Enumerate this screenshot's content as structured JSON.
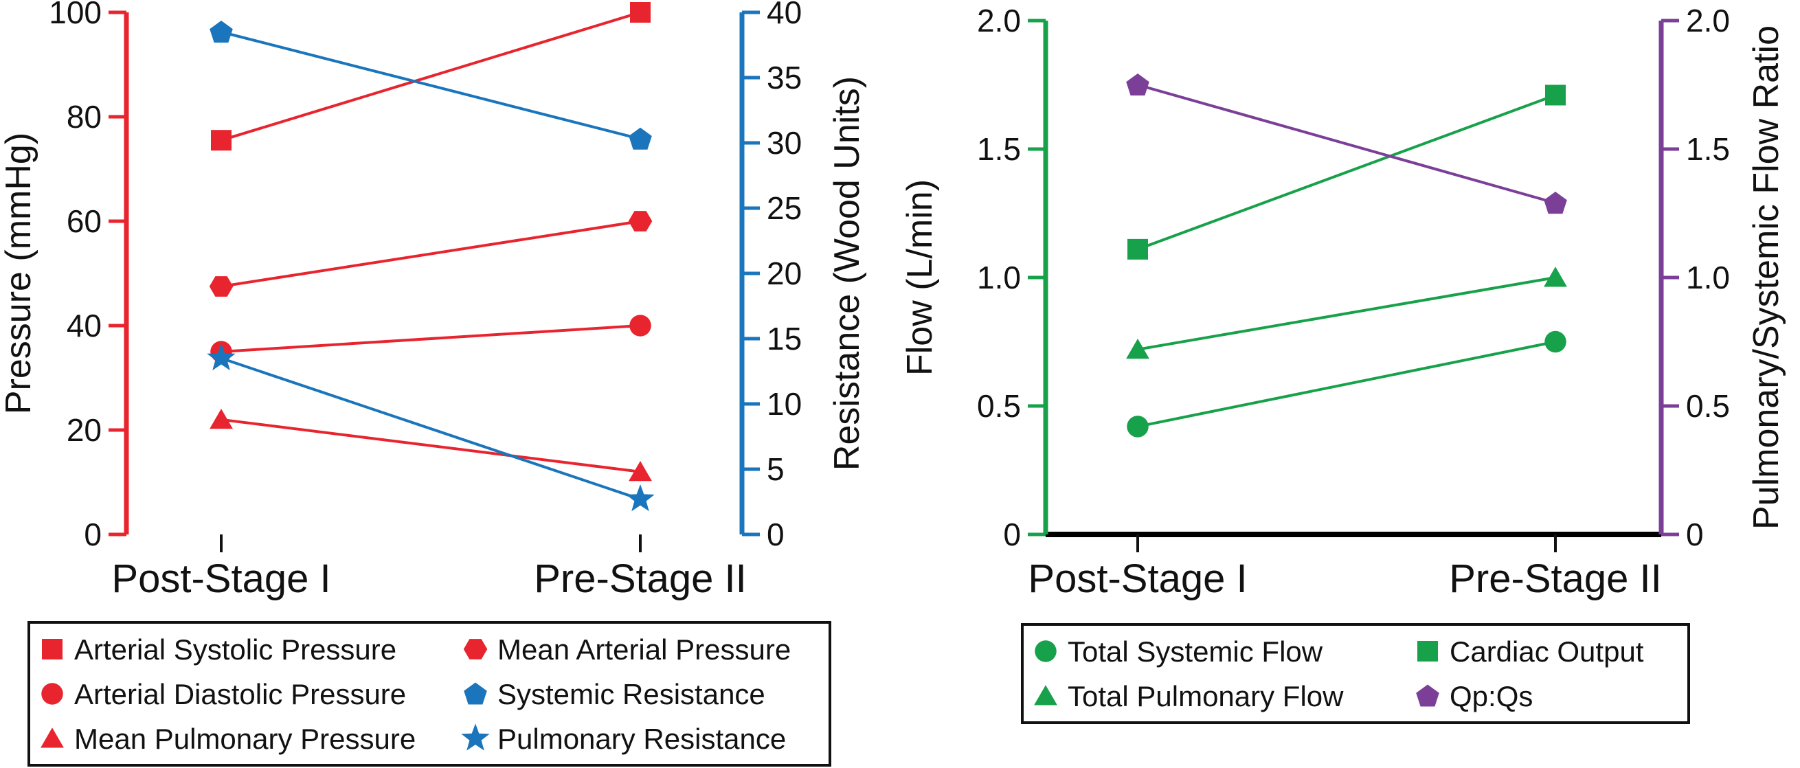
{
  "chart_data": [
    {
      "type": "line",
      "name": "pressure-resistance",
      "categories": [
        "Post-Stage I",
        "Pre-Stage II"
      ],
      "left_axis": {
        "label": "Pressure (mmHg)",
        "ylim": [
          0,
          100
        ],
        "ticks": [
          0,
          20,
          40,
          60,
          80,
          100
        ],
        "color": "#e8242e"
      },
      "right_axis": {
        "label": "Resistance (Wood Units)",
        "ylim": [
          0,
          40
        ],
        "ticks": [
          0,
          5,
          10,
          15,
          20,
          25,
          30,
          35,
          40
        ],
        "color": "#1a75bc"
      },
      "series": [
        {
          "name": "Arterial Systolic Pressure",
          "axis": "left",
          "marker": "square",
          "color": "#e8242e",
          "values": [
            75.5,
            100
          ]
        },
        {
          "name": "Arterial Diastolic Pressure",
          "axis": "left",
          "marker": "circle",
          "color": "#e8242e",
          "values": [
            35,
            40
          ]
        },
        {
          "name": "Mean Pulmonary Pressure",
          "axis": "left",
          "marker": "triangle",
          "color": "#e8242e",
          "values": [
            22,
            12
          ]
        },
        {
          "name": "Mean Arterial Pressure",
          "axis": "left",
          "marker": "hexagon",
          "color": "#e8242e",
          "values": [
            47.5,
            60
          ]
        },
        {
          "name": "Systemic Resistance",
          "axis": "right",
          "marker": "pentagon",
          "color": "#1a75bc",
          "values": [
            38.5,
            30.3
          ]
        },
        {
          "name": "Pulmonary Resistance",
          "axis": "right",
          "marker": "star",
          "color": "#1a75bc",
          "values": [
            13.5,
            2.7
          ]
        }
      ],
      "legend_order": [
        "Arterial Systolic Pressure",
        "Mean Arterial Pressure",
        "Arterial Diastolic Pressure",
        "Systemic Resistance",
        "Mean Pulmonary Pressure",
        "Pulmonary Resistance"
      ],
      "legend_position": "bottom"
    },
    {
      "type": "line",
      "name": "flow",
      "categories": [
        "Post-Stage I",
        "Pre-Stage II"
      ],
      "left_axis": {
        "label": "Flow (L/min)",
        "ylim": [
          0,
          2.0
        ],
        "ticks": [
          0,
          0.5,
          1.0,
          1.5,
          2.0
        ],
        "tick_labels": [
          "0",
          "0.5",
          "1.0",
          "1.5",
          "2.0"
        ],
        "color": "#17a14a"
      },
      "right_axis": {
        "label": "Pulmonary/Systemic Flow Ratio",
        "ylim": [
          0,
          2.0
        ],
        "ticks": [
          0,
          0.5,
          1.0,
          1.5,
          2.0
        ],
        "tick_labels": [
          "0",
          "0.5",
          "1.0",
          "1.5",
          "2.0"
        ],
        "color": "#7b3f98"
      },
      "series": [
        {
          "name": "Total Systemic Flow",
          "axis": "left",
          "marker": "circle",
          "color": "#17a14a",
          "values": [
            0.42,
            0.75
          ]
        },
        {
          "name": "Total Pulmonary Flow",
          "axis": "left",
          "marker": "triangle",
          "color": "#17a14a",
          "values": [
            0.72,
            1.0
          ]
        },
        {
          "name": "Cardiac Output",
          "axis": "left",
          "marker": "square",
          "color": "#17a14a",
          "values": [
            1.11,
            1.71
          ]
        },
        {
          "name": "Qp:Qs",
          "axis": "right",
          "marker": "pentagon",
          "color": "#7b3f98",
          "values": [
            1.75,
            1.29
          ]
        }
      ],
      "legend_order": [
        "Total Systemic Flow",
        "Cardiac Output",
        "Total Pulmonary Flow",
        "Qp:Qs"
      ],
      "legend_position": "bottom"
    }
  ]
}
